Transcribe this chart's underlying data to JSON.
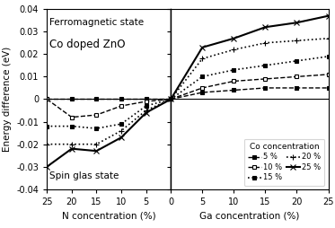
{
  "title_text1": "Ferromagnetic state",
  "title_text2": "Co doped ZnO",
  "spin_glas_text": "Spin glas state",
  "ylabel": "Energy difference (eV)",
  "xlabel_left": "N concentration (%)",
  "xlabel_right": "Ga concentration (%)",
  "ylim": [
    -0.04,
    0.04
  ],
  "legend_title": "Co concentration",
  "legend_entries": [
    "5 %",
    "10 %",
    "15 %",
    "20 %",
    "25 %"
  ],
  "N_x": [
    25,
    20,
    15,
    10,
    5,
    0
  ],
  "Ga_x": [
    0,
    5,
    10,
    15,
    20,
    25
  ],
  "data_N_5": [
    0.0,
    0.0,
    0.0,
    0.0,
    0.0,
    0.0
  ],
  "data_N_10": [
    0.0,
    -0.008,
    -0.007,
    -0.003,
    -0.001,
    0.0
  ],
  "data_N_15": [
    -0.012,
    -0.012,
    -0.013,
    -0.011,
    -0.003,
    0.0
  ],
  "data_N_20": [
    -0.02,
    -0.02,
    -0.02,
    -0.014,
    -0.005,
    0.0
  ],
  "data_N_25": [
    -0.03,
    -0.022,
    -0.023,
    -0.017,
    -0.006,
    0.0
  ],
  "data_Ga_5": [
    0.0,
    0.003,
    0.004,
    0.005,
    0.005,
    0.005
  ],
  "data_Ga_10": [
    0.0,
    0.005,
    0.008,
    0.009,
    0.01,
    0.011
  ],
  "data_Ga_15": [
    0.0,
    0.01,
    0.013,
    0.015,
    0.017,
    0.019
  ],
  "data_Ga_20": [
    0.0,
    0.018,
    0.022,
    0.025,
    0.026,
    0.027
  ],
  "data_Ga_25": [
    0.0,
    0.023,
    0.027,
    0.032,
    0.034,
    0.037
  ],
  "styles": [
    {
      "marker": "s",
      "linestyle": "--",
      "color": "black",
      "markerfacecolor": "black",
      "markersize": 3.5,
      "linewidth": 1.0,
      "dashes": [
        4,
        2
      ]
    },
    {
      "marker": "s",
      "linestyle": "--",
      "color": "black",
      "markerfacecolor": "white",
      "markersize": 3.5,
      "linewidth": 1.0,
      "dashes": [
        6,
        2
      ]
    },
    {
      "marker": "s",
      "linestyle": ":",
      "color": "black",
      "markerfacecolor": "black",
      "markersize": 3.5,
      "linewidth": 1.2,
      "dashes": []
    },
    {
      "marker": "+",
      "linestyle": ":",
      "color": "black",
      "markerfacecolor": "black",
      "markersize": 5.0,
      "linewidth": 1.2,
      "dashes": []
    },
    {
      "marker": "x",
      "linestyle": "-",
      "color": "black",
      "markerfacecolor": "black",
      "markersize": 4.5,
      "linewidth": 1.5,
      "dashes": []
    }
  ]
}
